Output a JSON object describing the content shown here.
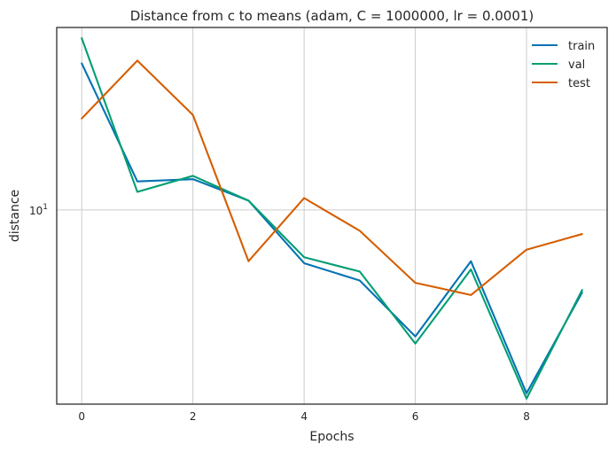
{
  "chart_data": {
    "type": "line",
    "title": "Distance from c to means (adam, C = 1000000, lr = 0.0001)",
    "xlabel": "Epochs",
    "ylabel": "distance",
    "yscale": "log",
    "xlim": [
      -0.45,
      9.45
    ],
    "ylim": [
      2.45,
      37.5
    ],
    "x": [
      0,
      1,
      2,
      3,
      4,
      5,
      6,
      7,
      8,
      9
    ],
    "x_ticks": [
      0,
      2,
      4,
      6,
      8
    ],
    "y_ticks": [
      {
        "value": 10,
        "label": "10",
        "exponent": "1"
      }
    ],
    "grid": true,
    "legend_position": "top-right",
    "series": [
      {
        "name": "train",
        "color": "#0173b2",
        "values": [
          28.9,
          12.3,
          12.5,
          10.7,
          6.8,
          6.0,
          4.0,
          6.9,
          2.65,
          5.5
        ]
      },
      {
        "name": "val",
        "color": "#029e73",
        "values": [
          34.7,
          11.4,
          12.8,
          10.7,
          7.1,
          6.4,
          3.8,
          6.5,
          2.55,
          5.6
        ]
      },
      {
        "name": "test",
        "color": "#d55e00",
        "values": [
          19.4,
          29.5,
          19.9,
          6.9,
          10.9,
          8.6,
          5.9,
          5.4,
          7.5,
          8.4
        ]
      }
    ]
  }
}
